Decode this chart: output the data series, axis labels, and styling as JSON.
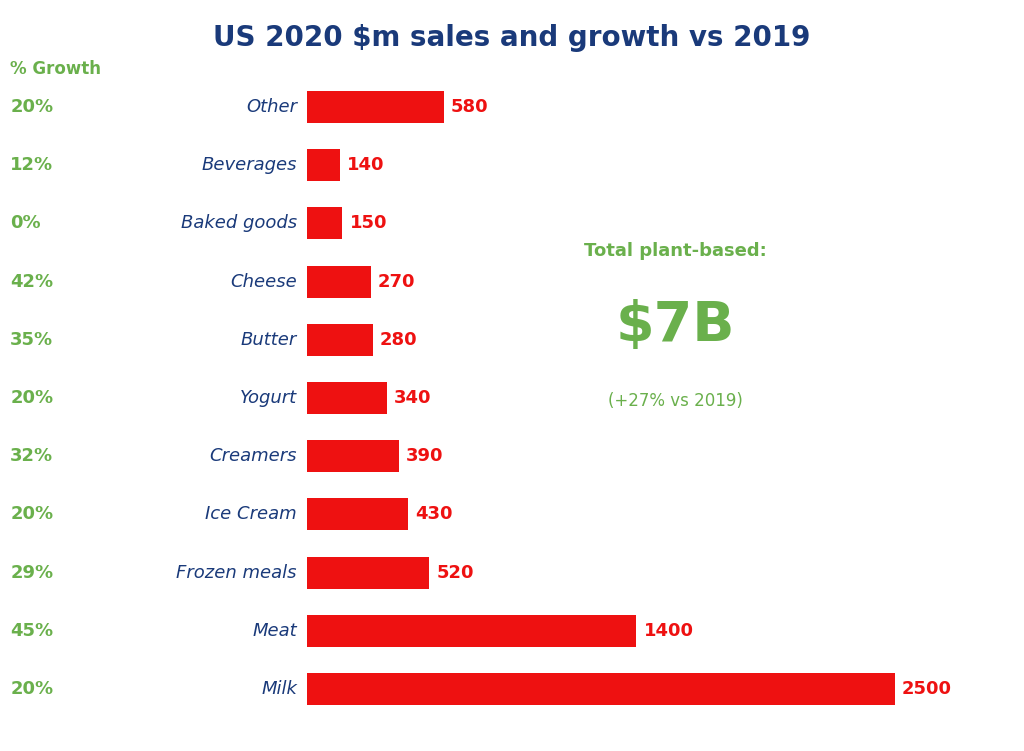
{
  "title": "US 2020 $m sales and growth vs 2019",
  "title_color": "#1a3a7a",
  "title_fontsize": 20,
  "categories": [
    "Other",
    "Beverages",
    "Baked goods",
    "Cheese",
    "Butter",
    "Yogurt",
    "Creamers",
    "Ice Cream",
    "Frozen meals",
    "Meat",
    "Milk"
  ],
  "values": [
    580,
    140,
    150,
    270,
    280,
    340,
    390,
    430,
    520,
    1400,
    2500
  ],
  "growth": [
    "20%",
    "12%",
    "0%",
    "42%",
    "35%",
    "20%",
    "32%",
    "20%",
    "29%",
    "45%",
    "20%"
  ],
  "bar_color": "#ee1111",
  "category_color": "#1a3a7a",
  "growth_color": "#6ab04c",
  "value_label_color": "#ee1111",
  "percent_growth_label": "% Growth",
  "annotation_title": "Total plant-based:",
  "annotation_value": "$7B",
  "annotation_sub": "(+27% vs 2019)",
  "annotation_color": "#6ab04c",
  "background_color": "#ffffff",
  "bar_height": 0.55,
  "xlim_max": 2700,
  "figsize": [
    10.24,
    7.51
  ],
  "dpi": 100,
  "category_fontsize": 13,
  "growth_fontsize": 13,
  "value_fontsize": 13,
  "annotation_title_fontsize": 13,
  "annotation_value_fontsize": 40,
  "annotation_sub_fontsize": 12
}
